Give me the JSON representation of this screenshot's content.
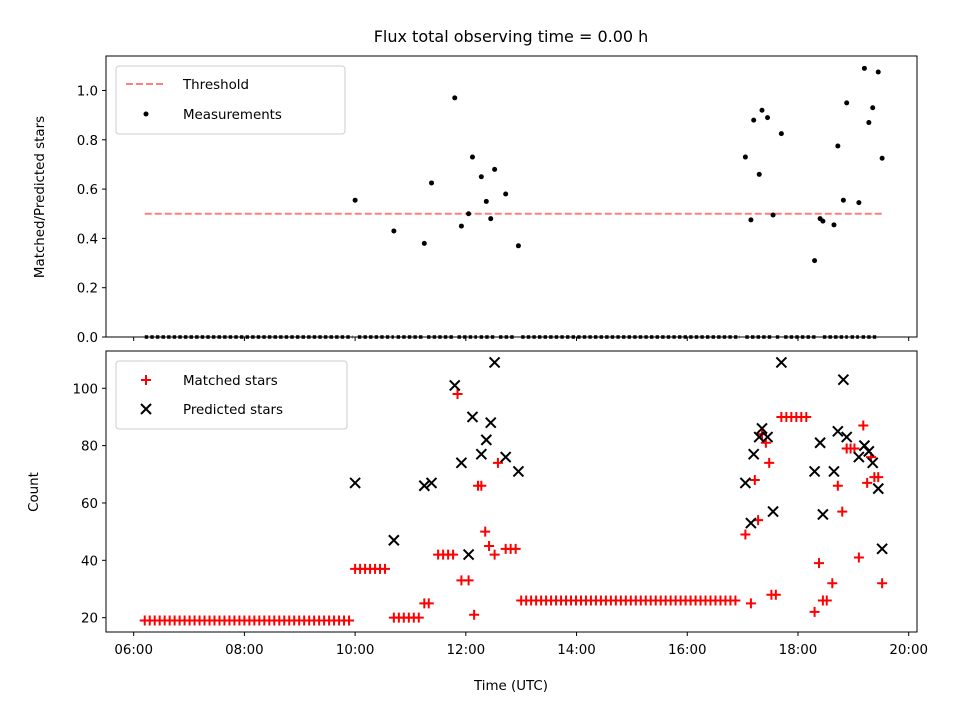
{
  "chart_data": [
    {
      "type": "scatter",
      "title": "Flux total observing time = 0.00 h",
      "ylabel": "Matched/Predicted stars",
      "xlabel": "",
      "xlim_hours": [
        5.5,
        20.15
      ],
      "ylim": [
        0,
        1.14
      ],
      "yticks": [
        0.0,
        0.2,
        0.4,
        0.6,
        0.8,
        1.0
      ],
      "ytick_labels": [
        "0.0",
        "0.2",
        "0.4",
        "0.6",
        "0.8",
        "1.0"
      ],
      "legend": {
        "location": "upper left",
        "entries": [
          "Threshold",
          "Measurements"
        ]
      },
      "threshold": {
        "name": "Threshold",
        "value": 0.5,
        "x_range_hours": [
          6.2,
          19.55
        ],
        "color": "#ff7f7f",
        "style": "dashed"
      },
      "measurements": {
        "name": "Measurements",
        "color": "#000000",
        "zero_segments_hours": [
          [
            6.2,
            9.95
          ],
          [
            10.05,
            10.7
          ],
          [
            10.75,
            11.25
          ],
          [
            11.3,
            11.8
          ],
          [
            11.85,
            12.2
          ],
          [
            12.25,
            12.55
          ],
          [
            12.6,
            12.9
          ],
          [
            13.0,
            16.95
          ],
          [
            17.05,
            17.55
          ],
          [
            17.6,
            17.7
          ],
          [
            17.75,
            18.35
          ],
          [
            18.45,
            18.9
          ],
          [
            18.95,
            19.1
          ],
          [
            19.15,
            19.45
          ]
        ],
        "x_hours": [
          10.0,
          10.7,
          11.25,
          11.38,
          11.8,
          11.92,
          12.05,
          12.12,
          12.28,
          12.37,
          12.45,
          12.52,
          12.72,
          12.95,
          17.05,
          17.15,
          17.2,
          17.3,
          17.35,
          17.45,
          17.55,
          17.7,
          18.3,
          18.4,
          18.45,
          18.65,
          18.72,
          18.82,
          18.88,
          19.1,
          19.2,
          19.28,
          19.35,
          19.45,
          19.52
        ],
        "y": [
          0.555,
          0.43,
          0.38,
          0.625,
          0.97,
          0.45,
          0.5,
          0.73,
          0.65,
          0.55,
          0.48,
          0.68,
          0.58,
          0.37,
          0.73,
          0.475,
          0.88,
          0.66,
          0.92,
          0.89,
          0.495,
          0.825,
          0.31,
          0.48,
          0.47,
          0.455,
          0.775,
          0.555,
          0.95,
          0.545,
          1.09,
          0.87,
          0.93,
          1.075,
          0.725
        ]
      }
    },
    {
      "type": "scatter",
      "title": "",
      "ylabel": "Count",
      "xlabel": "Time (UTC)",
      "xlim_hours": [
        5.5,
        20.15
      ],
      "ylim": [
        15,
        113
      ],
      "yticks": [
        20,
        40,
        60,
        80,
        100
      ],
      "ytick_labels": [
        "20",
        "40",
        "60",
        "80",
        "100"
      ],
      "xticks_hours": [
        6,
        8,
        10,
        12,
        14,
        16,
        18,
        20
      ],
      "xtick_labels": [
        "06:00",
        "08:00",
        "10:00",
        "12:00",
        "14:00",
        "16:00",
        "18:00",
        "20:00"
      ],
      "legend": {
        "location": "upper left",
        "entries": [
          "Matched stars",
          "Predicted stars"
        ]
      },
      "series": [
        {
          "name": "Matched stars",
          "marker": "+",
          "color": "#ff0000",
          "runs": [
            {
              "from": 6.2,
              "to": 9.95,
              "step": 0.09,
              "y": 19
            },
            {
              "from": 10.0,
              "to": 10.6,
              "step": 0.09,
              "y": 37
            },
            {
              "from": 10.7,
              "to": 11.2,
              "step": 0.09,
              "y": 20
            },
            {
              "from": 11.5,
              "to": 11.8,
              "step": 0.09,
              "y": 42
            },
            {
              "from": 12.72,
              "to": 12.95,
              "step": 0.09,
              "y": 44
            },
            {
              "from": 13.0,
              "to": 16.95,
              "step": 0.09,
              "y": 26
            },
            {
              "from": 17.7,
              "to": 18.2,
              "step": 0.09,
              "y": 90
            }
          ],
          "x_hours": [
            11.25,
            11.33,
            11.85,
            11.92,
            12.05,
            12.15,
            12.22,
            12.28,
            12.35,
            12.42,
            12.52,
            12.58,
            17.05,
            17.15,
            17.22,
            17.28,
            17.35,
            17.42,
            17.48,
            17.52,
            17.6,
            18.3,
            18.38,
            18.45,
            18.52,
            18.62,
            18.72,
            18.8,
            18.88,
            18.95,
            19.02,
            19.1,
            19.18,
            19.25,
            19.32,
            19.38,
            19.45,
            19.52
          ],
          "y": [
            25,
            25,
            98,
            33,
            33,
            21,
            66,
            66,
            50,
            45,
            42,
            74,
            49,
            25,
            68,
            54,
            84,
            81,
            74,
            28,
            28,
            22,
            39,
            26,
            26,
            32,
            66,
            57,
            79,
            79,
            79,
            41,
            87,
            67,
            76,
            69,
            69,
            32
          ]
        },
        {
          "name": "Predicted stars",
          "marker": "x",
          "color": "#000000",
          "x_hours": [
            10.0,
            10.7,
            11.25,
            11.38,
            11.8,
            11.92,
            12.05,
            12.12,
            12.28,
            12.37,
            12.45,
            12.52,
            12.72,
            12.95,
            17.05,
            17.15,
            17.2,
            17.3,
            17.35,
            17.45,
            17.55,
            17.7,
            18.3,
            18.4,
            18.45,
            18.65,
            18.72,
            18.82,
            18.88,
            19.1,
            19.2,
            19.28,
            19.35,
            19.45,
            19.52
          ],
          "y": [
            67,
            47,
            66,
            67,
            101,
            74,
            42,
            90,
            77,
            82,
            88,
            109,
            76,
            71,
            67,
            53,
            77,
            83,
            86,
            83,
            57,
            109,
            71,
            81,
            56,
            71,
            85,
            103,
            83,
            76,
            80,
            78,
            74,
            65,
            44
          ]
        }
      ]
    }
  ]
}
